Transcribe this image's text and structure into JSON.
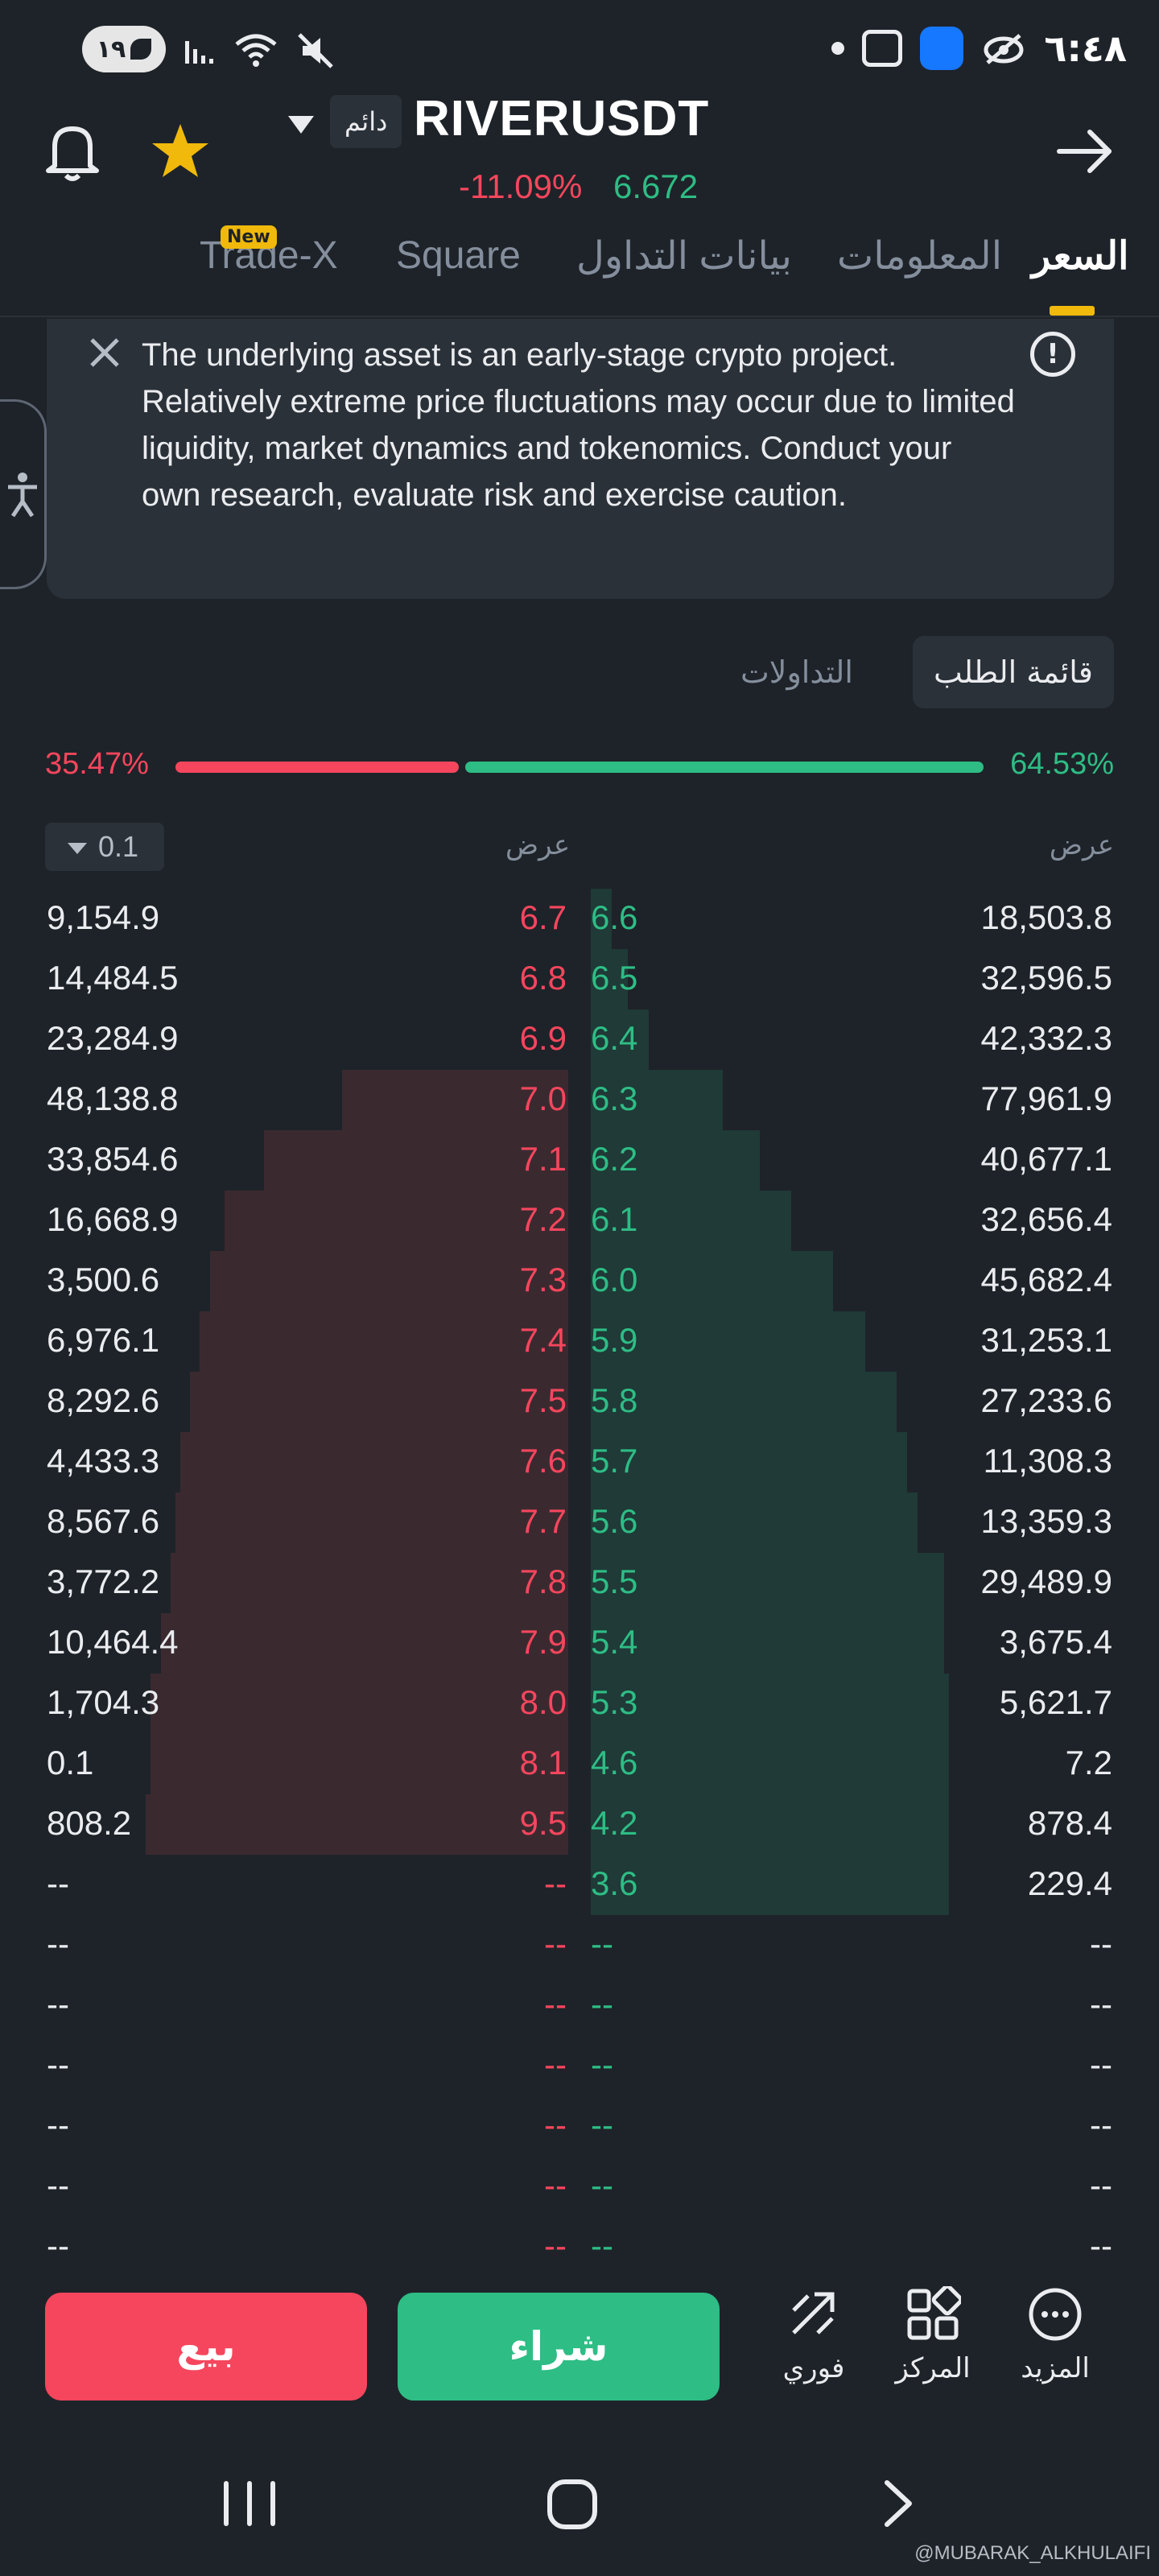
{
  "status_bar": {
    "battery": "١٩",
    "time": "٦:٤٨"
  },
  "header": {
    "contract_type": "دائم",
    "symbol": "RIVERUSDT",
    "change_pct": "-11.09%",
    "price": "6.672"
  },
  "tabs": [
    {
      "label": "السعر",
      "active": true
    },
    {
      "label": "المعلومات",
      "active": false
    },
    {
      "label": "بيانات التداول",
      "active": false
    },
    {
      "label": "Square",
      "active": false
    },
    {
      "label": "Trade-X",
      "active": false,
      "badge": "New"
    }
  ],
  "notice": {
    "text": "The underlying asset is an early-stage crypto project. Relatively extreme price fluctuations may occur due to limited liquidity, market dynamics and tokenomics. Conduct your own research, evaluate risk and exercise caution."
  },
  "orderbook_tabs": {
    "active": "قائمة الطلب",
    "other": "التداولات"
  },
  "ratio": {
    "sell_pct": "35.47%",
    "buy_pct": "64.53%",
    "sell_fraction": 0.3547,
    "buy_fraction": 0.6453
  },
  "book_header": {
    "precision": "0.1",
    "left_label": "عرض",
    "right_label": "عرض"
  },
  "book_rows": [
    {
      "ask_qty": "9,154.9",
      "ask": "6.7",
      "bid": "6.6",
      "bid_qty": "18,503.8"
    },
    {
      "ask_qty": "14,484.5",
      "ask": "6.8",
      "bid": "6.5",
      "bid_qty": "32,596.5"
    },
    {
      "ask_qty": "23,284.9",
      "ask": "6.9",
      "bid": "6.4",
      "bid_qty": "42,332.3"
    },
    {
      "ask_qty": "48,138.8",
      "ask": "7.0",
      "bid": "6.3",
      "bid_qty": "77,961.9"
    },
    {
      "ask_qty": "33,854.6",
      "ask": "7.1",
      "bid": "6.2",
      "bid_qty": "40,677.1"
    },
    {
      "ask_qty": "16,668.9",
      "ask": "7.2",
      "bid": "6.1",
      "bid_qty": "32,656.4"
    },
    {
      "ask_qty": "3,500.6",
      "ask": "7.3",
      "bid": "6.0",
      "bid_qty": "45,682.4"
    },
    {
      "ask_qty": "6,976.1",
      "ask": "7.4",
      "bid": "5.9",
      "bid_qty": "31,253.1"
    },
    {
      "ask_qty": "8,292.6",
      "ask": "7.5",
      "bid": "5.8",
      "bid_qty": "27,233.6"
    },
    {
      "ask_qty": "4,433.3",
      "ask": "7.6",
      "bid": "5.7",
      "bid_qty": "11,308.3"
    },
    {
      "ask_qty": "8,567.6",
      "ask": "7.7",
      "bid": "5.6",
      "bid_qty": "13,359.3"
    },
    {
      "ask_qty": "3,772.2",
      "ask": "7.8",
      "bid": "5.5",
      "bid_qty": "29,489.9"
    },
    {
      "ask_qty": "10,464.4",
      "ask": "7.9",
      "bid": "5.4",
      "bid_qty": "3,675.4"
    },
    {
      "ask_qty": "1,704.3",
      "ask": "8.0",
      "bid": "5.3",
      "bid_qty": "5,621.7"
    },
    {
      "ask_qty": "0.1",
      "ask": "8.1",
      "bid": "4.6",
      "bid_qty": "7.2"
    },
    {
      "ask_qty": "808.2",
      "ask": "9.5",
      "bid": "4.2",
      "bid_qty": "878.4"
    },
    {
      "ask_qty": "--",
      "ask": "--",
      "bid": "3.6",
      "bid_qty": "229.4"
    },
    {
      "ask_qty": "--",
      "ask": "--",
      "bid": "--",
      "bid_qty": "--"
    },
    {
      "ask_qty": "--",
      "ask": "--",
      "bid": "--",
      "bid_qty": "--"
    },
    {
      "ask_qty": "--",
      "ask": "--",
      "bid": "--",
      "bid_qty": "--"
    },
    {
      "ask_qty": "--",
      "ask": "--",
      "bid": "--",
      "bid_qty": "--"
    },
    {
      "ask_qty": "--",
      "ask": "--",
      "bid": "--",
      "bid_qty": "--"
    },
    {
      "ask_qty": "--",
      "ask": "--",
      "bid": "--",
      "bid_qty": "--"
    }
  ],
  "depth_profile": {
    "ask_cumulative_fraction": [
      0,
      0,
      0,
      0.46,
      0.62,
      0.7,
      0.73,
      0.75,
      0.77,
      0.79,
      0.8,
      0.81,
      0.83,
      0.85,
      0.85,
      0.86,
      0,
      0,
      0,
      0,
      0,
      0,
      0
    ],
    "bid_cumulative_fraction": [
      0.04,
      0.07,
      0.11,
      0.25,
      0.32,
      0.38,
      0.46,
      0.52,
      0.58,
      0.6,
      0.62,
      0.67,
      0.67,
      0.68,
      0.68,
      0.68,
      0.68,
      0,
      0,
      0,
      0,
      0,
      0
    ]
  },
  "actions": {
    "sell": "بيع",
    "buy": "شراء",
    "spot": "فوري",
    "positions": "المركز",
    "more": "المزيد"
  },
  "watermark": "@MUBARAK_ALKHULAIFI",
  "colors": {
    "background": "#1e2329",
    "sell": "#f6465d",
    "buy": "#2ebd85",
    "accent": "#f0b90b"
  }
}
